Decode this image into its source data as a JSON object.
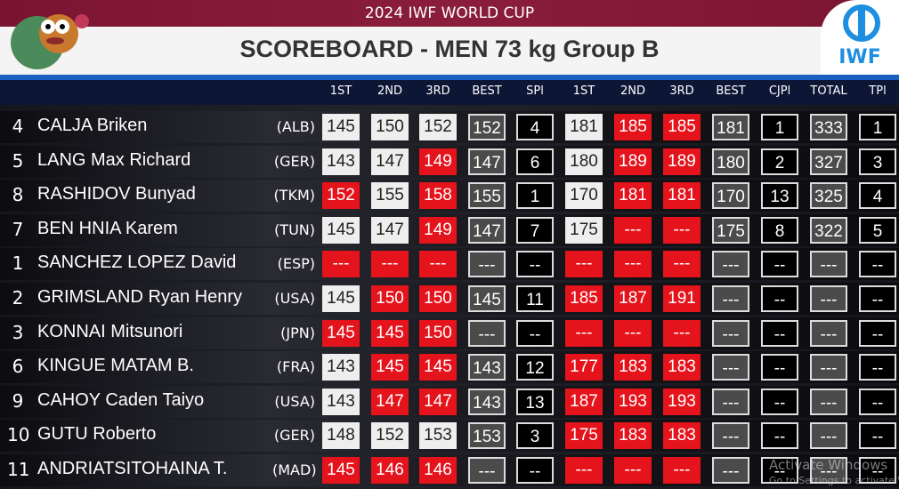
{
  "header": {
    "event": "2024 IWF WORLD CUP",
    "title": "SCOREBOARD - MEN 73 kg Group B",
    "logo": "IWF"
  },
  "columns": [
    "1ST",
    "2ND",
    "3RD",
    "BEST",
    "SPl",
    "1ST",
    "2ND",
    "3RD",
    "BEST",
    "CJPl",
    "TOTAL",
    "TPl"
  ],
  "rows": [
    {
      "number": 4,
      "name": "CALJA Briken",
      "country": "(ALB)",
      "cells": [
        145,
        150,
        152,
        152,
        4,
        181,
        185,
        185,
        181,
        1,
        333,
        1
      ],
      "styles": [
        "w",
        "w",
        "w",
        "g",
        "k",
        "w",
        "r",
        "r",
        "g",
        "k",
        "g",
        "k"
      ]
    },
    {
      "number": 5,
      "name": "LANG Max Richard",
      "country": "(GER)",
      "cells": [
        143,
        147,
        149,
        147,
        6,
        180,
        189,
        189,
        180,
        2,
        327,
        3
      ],
      "styles": [
        "w",
        "w",
        "r",
        "g",
        "k",
        "w",
        "r",
        "r",
        "g",
        "k",
        "g",
        "k"
      ]
    },
    {
      "number": 8,
      "name": "RASHIDOV Bunyad",
      "country": "(TKM)",
      "cells": [
        152,
        155,
        158,
        155,
        1,
        170,
        181,
        181,
        170,
        13,
        325,
        4
      ],
      "styles": [
        "r",
        "w",
        "r",
        "g",
        "k",
        "w",
        "r",
        "r",
        "g",
        "k",
        "g",
        "k"
      ]
    },
    {
      "number": 7,
      "name": "BEN HNIA Karem",
      "country": "(TUN)",
      "cells": [
        145,
        147,
        149,
        147,
        7,
        175,
        "---",
        "---",
        175,
        8,
        322,
        5
      ],
      "styles": [
        "w",
        "w",
        "r",
        "g",
        "k",
        "w",
        "r",
        "r",
        "g",
        "k",
        "g",
        "k"
      ]
    },
    {
      "number": 1,
      "name": "SANCHEZ LOPEZ David",
      "country": "(ESP)",
      "cells": [
        "---",
        "---",
        "---",
        "---",
        "--",
        "---",
        "---",
        "---",
        "---",
        "--",
        "---",
        "--"
      ],
      "styles": [
        "r",
        "r",
        "r",
        "g",
        "k",
        "r",
        "r",
        "r",
        "g",
        "k",
        "g",
        "k"
      ]
    },
    {
      "number": 2,
      "name": "GRIMSLAND Ryan Henry",
      "country": "(USA)",
      "cells": [
        145,
        150,
        150,
        145,
        11,
        185,
        187,
        191,
        "---",
        "--",
        "---",
        "--"
      ],
      "styles": [
        "w",
        "r",
        "r",
        "g",
        "k",
        "r",
        "r",
        "r",
        "g",
        "k",
        "g",
        "k"
      ]
    },
    {
      "number": 3,
      "name": "KONNAI Mitsunori",
      "country": "(JPN)",
      "cells": [
        145,
        145,
        150,
        "---",
        "--",
        "---",
        "---",
        "---",
        "---",
        "--",
        "---",
        "--"
      ],
      "styles": [
        "r",
        "r",
        "r",
        "g",
        "k",
        "r",
        "r",
        "r",
        "g",
        "k",
        "g",
        "k"
      ]
    },
    {
      "number": 6,
      "name": "KINGUE MATAM B.",
      "country": "(FRA)",
      "cells": [
        143,
        145,
        145,
        143,
        12,
        177,
        183,
        183,
        "---",
        "--",
        "---",
        "--"
      ],
      "styles": [
        "w",
        "r",
        "r",
        "g",
        "k",
        "r",
        "r",
        "r",
        "g",
        "k",
        "g",
        "k"
      ]
    },
    {
      "number": 9,
      "name": "CAHOY Caden Taiyo",
      "country": "(USA)",
      "cells": [
        143,
        147,
        147,
        143,
        13,
        187,
        193,
        193,
        "---",
        "--",
        "---",
        "--"
      ],
      "styles": [
        "w",
        "r",
        "r",
        "g",
        "k",
        "r",
        "r",
        "r",
        "g",
        "k",
        "g",
        "k"
      ]
    },
    {
      "number": 10,
      "name": "GUTU Roberto",
      "country": "(GER)",
      "cells": [
        148,
        152,
        153,
        153,
        3,
        175,
        183,
        183,
        "---",
        "--",
        "---",
        "--"
      ],
      "styles": [
        "w",
        "w",
        "w",
        "g",
        "k",
        "r",
        "r",
        "r",
        "g",
        "k",
        "g",
        "k"
      ]
    },
    {
      "number": 11,
      "name": "ANDRIATSITOHAINA T.",
      "country": "(MAD)",
      "cells": [
        145,
        146,
        146,
        "---",
        "--",
        "---",
        "---",
        "---",
        "---",
        "--",
        "---",
        "--"
      ],
      "styles": [
        "r",
        "r",
        "r",
        "g",
        "k",
        "r",
        "r",
        "r",
        "g",
        "k",
        "g",
        "k"
      ]
    }
  ],
  "watermark": {
    "title": "Activate Windows",
    "subtitle": "Go to Settings to activate Windows."
  }
}
